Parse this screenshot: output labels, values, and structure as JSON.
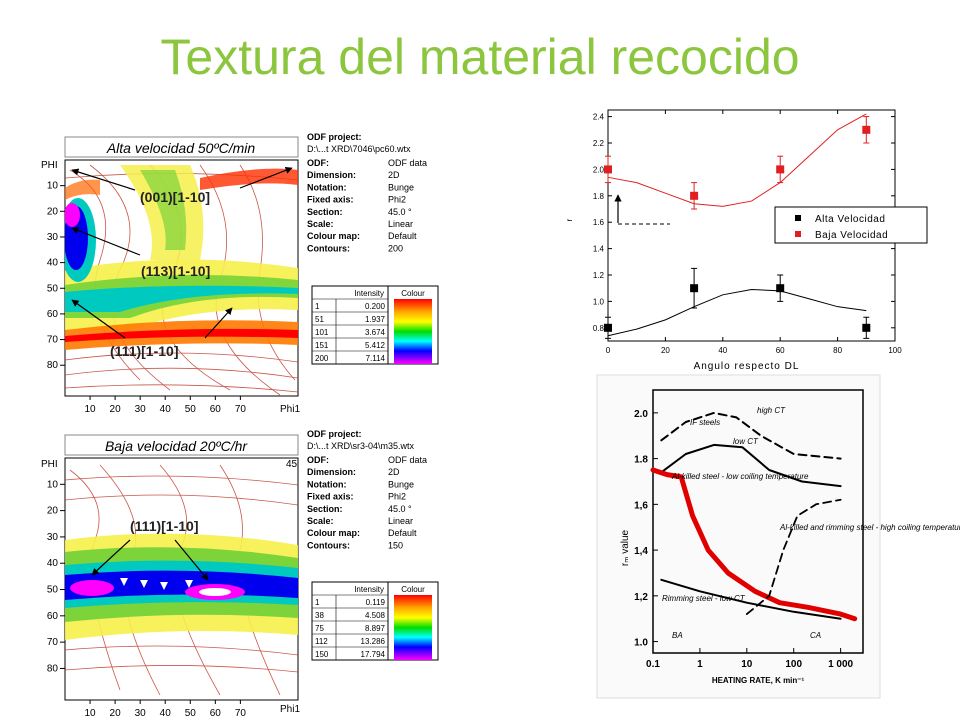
{
  "title": "Textura del material recocido",
  "odf_top": {
    "caption": "Alta velocidad 50ºC/min",
    "phi_label": "PHI",
    "phi1_label": "Phi1",
    "y_ticks": [
      "10",
      "20",
      "30",
      "40",
      "50",
      "60",
      "70",
      "80"
    ],
    "x_ticks": [
      "10",
      "20",
      "30",
      "40",
      "50",
      "60",
      "70"
    ],
    "annotations": [
      "(001)[1-10]",
      "(113)[1-10]",
      "(111)[1-10]"
    ],
    "info_title": "ODF project:",
    "info_path": "D:\\...t XRD\\7046\\pc60.wtx",
    "info_rows": [
      {
        "k": "ODF:",
        "v": "ODF data"
      },
      {
        "k": "Dimension:",
        "v": "2D"
      },
      {
        "k": "Notation:",
        "v": "Bunge"
      },
      {
        "k": "Fixed axis:",
        "v": "Phi2"
      },
      {
        "k": "Section:",
        "v": "45.0 °"
      },
      {
        "k": "Scale:",
        "v": "Linear"
      },
      {
        "k": "Colour map:",
        "v": "Default"
      },
      {
        "k": "Contours:",
        "v": "200"
      }
    ],
    "table_headers": [
      "Intensity",
      "Colour"
    ],
    "table_rows": [
      [
        "1",
        "0.200"
      ],
      [
        "51",
        "1.937"
      ],
      [
        "101",
        "3.674"
      ],
      [
        "151",
        "5.412"
      ],
      [
        "200",
        "7.114"
      ]
    ]
  },
  "odf_bottom": {
    "caption": "Baja velocidad  20ºC/hr",
    "phi_label": "PHI",
    "phi1_label": "Phi1",
    "corner_value": "45",
    "y_ticks": [
      "10",
      "20",
      "30",
      "40",
      "50",
      "60",
      "70",
      "80"
    ],
    "x_ticks": [
      "10",
      "20",
      "30",
      "40",
      "50",
      "60",
      "70"
    ],
    "annotations": [
      "(111)[1-10]"
    ],
    "info_title": "ODF project:",
    "info_path": "D:\\...t XRD\\sr3-04\\m35.wtx",
    "info_rows": [
      {
        "k": "ODF:",
        "v": "ODF data"
      },
      {
        "k": "Dimension:",
        "v": "2D"
      },
      {
        "k": "Notation:",
        "v": "Bunge"
      },
      {
        "k": "Fixed axis:",
        "v": "Phi2"
      },
      {
        "k": "Section:",
        "v": "45.0 °"
      },
      {
        "k": "Scale:",
        "v": "Linear"
      },
      {
        "k": "Colour map:",
        "v": "Default"
      },
      {
        "k": "Contours:",
        "v": "150"
      }
    ],
    "table_headers": [
      "Intensity",
      "Colour"
    ],
    "table_rows": [
      [
        "1",
        "0.119"
      ],
      [
        "38",
        "4.508"
      ],
      [
        "75",
        "8.897"
      ],
      [
        "112",
        "13.286"
      ],
      [
        "150",
        "17.794"
      ]
    ]
  },
  "chart_data": [
    {
      "type": "scatter",
      "xlabel": "Angulo respecto DL",
      "ylabel": "r",
      "xlim": [
        0,
        100
      ],
      "ylim": [
        0.7,
        2.45
      ],
      "x_ticks": [
        0,
        20,
        40,
        60,
        80,
        100
      ],
      "y_ticks": [
        0.8,
        1.0,
        1.2,
        1.4,
        1.6,
        1.8,
        2.0,
        2.2,
        2.4
      ],
      "legend_position": "right",
      "series": [
        {
          "name": "Alta Velocidad",
          "color": "#000000",
          "x": [
            0,
            30,
            60,
            90
          ],
          "y": [
            0.8,
            1.1,
            1.1,
            0.8
          ],
          "err": [
            0.08,
            0.15,
            0.1,
            0.08
          ],
          "fit_x": [
            0,
            10,
            20,
            30,
            40,
            50,
            60,
            70,
            80,
            90
          ],
          "fit_y": [
            0.74,
            0.79,
            0.86,
            0.96,
            1.05,
            1.09,
            1.08,
            1.02,
            0.96,
            0.93
          ]
        },
        {
          "name": "Baja Velocidad",
          "color": "#e02020",
          "x": [
            0,
            30,
            60,
            90
          ],
          "y": [
            2.0,
            1.8,
            2.0,
            2.3
          ],
          "err": [
            0.1,
            0.1,
            0.1,
            0.1
          ],
          "fit_x": [
            0,
            10,
            20,
            30,
            40,
            50,
            60,
            70,
            80,
            90
          ],
          "fit_y": [
            1.94,
            1.9,
            1.82,
            1.74,
            1.72,
            1.76,
            1.9,
            2.1,
            2.3,
            2.42
          ]
        }
      ]
    },
    {
      "type": "line",
      "xlabel": "HEATING RATE, K min⁻¹",
      "ylabel": "rₘ value",
      "xscale": "log",
      "xlim": [
        0.1,
        3000
      ],
      "ylim": [
        0.95,
        2.1
      ],
      "x_ticks": [
        "0.1",
        "1",
        "10",
        "100",
        "1 000"
      ],
      "y_ticks": [
        "1.0",
        "1,2",
        "1,4",
        "1,6",
        "1.8",
        "2.0"
      ],
      "labels": [
        "high CT",
        "IF steels",
        "low CT",
        "Al-killed steel - low coiling temperature",
        "Al-killed and rimming steel - high coiling temperature",
        "Rimming steel - low CT",
        "BA",
        "CA"
      ],
      "series": [
        {
          "label": "high CT",
          "x": [
            0.15,
            0.5,
            2,
            6,
            20,
            100,
            1000
          ],
          "y": [
            1.88,
            1.96,
            2.0,
            1.98,
            1.9,
            1.82,
            1.8
          ]
        },
        {
          "label": "low CT",
          "x": [
            0.15,
            0.5,
            2,
            8,
            30,
            150,
            1000
          ],
          "y": [
            1.74,
            1.82,
            1.86,
            1.85,
            1.75,
            1.7,
            1.68
          ]
        },
        {
          "label": "Al-killed steel - low coiling temperature",
          "x": [
            0.1,
            0.2,
            0.4,
            0.7,
            1.5,
            4,
            15,
            50,
            200,
            1000,
            2000
          ],
          "y": [
            1.75,
            1.73,
            1.72,
            1.55,
            1.4,
            1.3,
            1.22,
            1.17,
            1.15,
            1.12,
            1.1
          ]
        },
        {
          "label": "Al-killed and rimming steel - high coiling temperature",
          "x": [
            10,
            30,
            60,
            120,
            300,
            1000
          ],
          "y": [
            1.12,
            1.2,
            1.4,
            1.55,
            1.6,
            1.62
          ]
        },
        {
          "label": "Rimming steel - low CT",
          "x": [
            0.15,
            1,
            10,
            100,
            1000
          ],
          "y": [
            1.27,
            1.22,
            1.17,
            1.13,
            1.1
          ]
        }
      ]
    }
  ]
}
